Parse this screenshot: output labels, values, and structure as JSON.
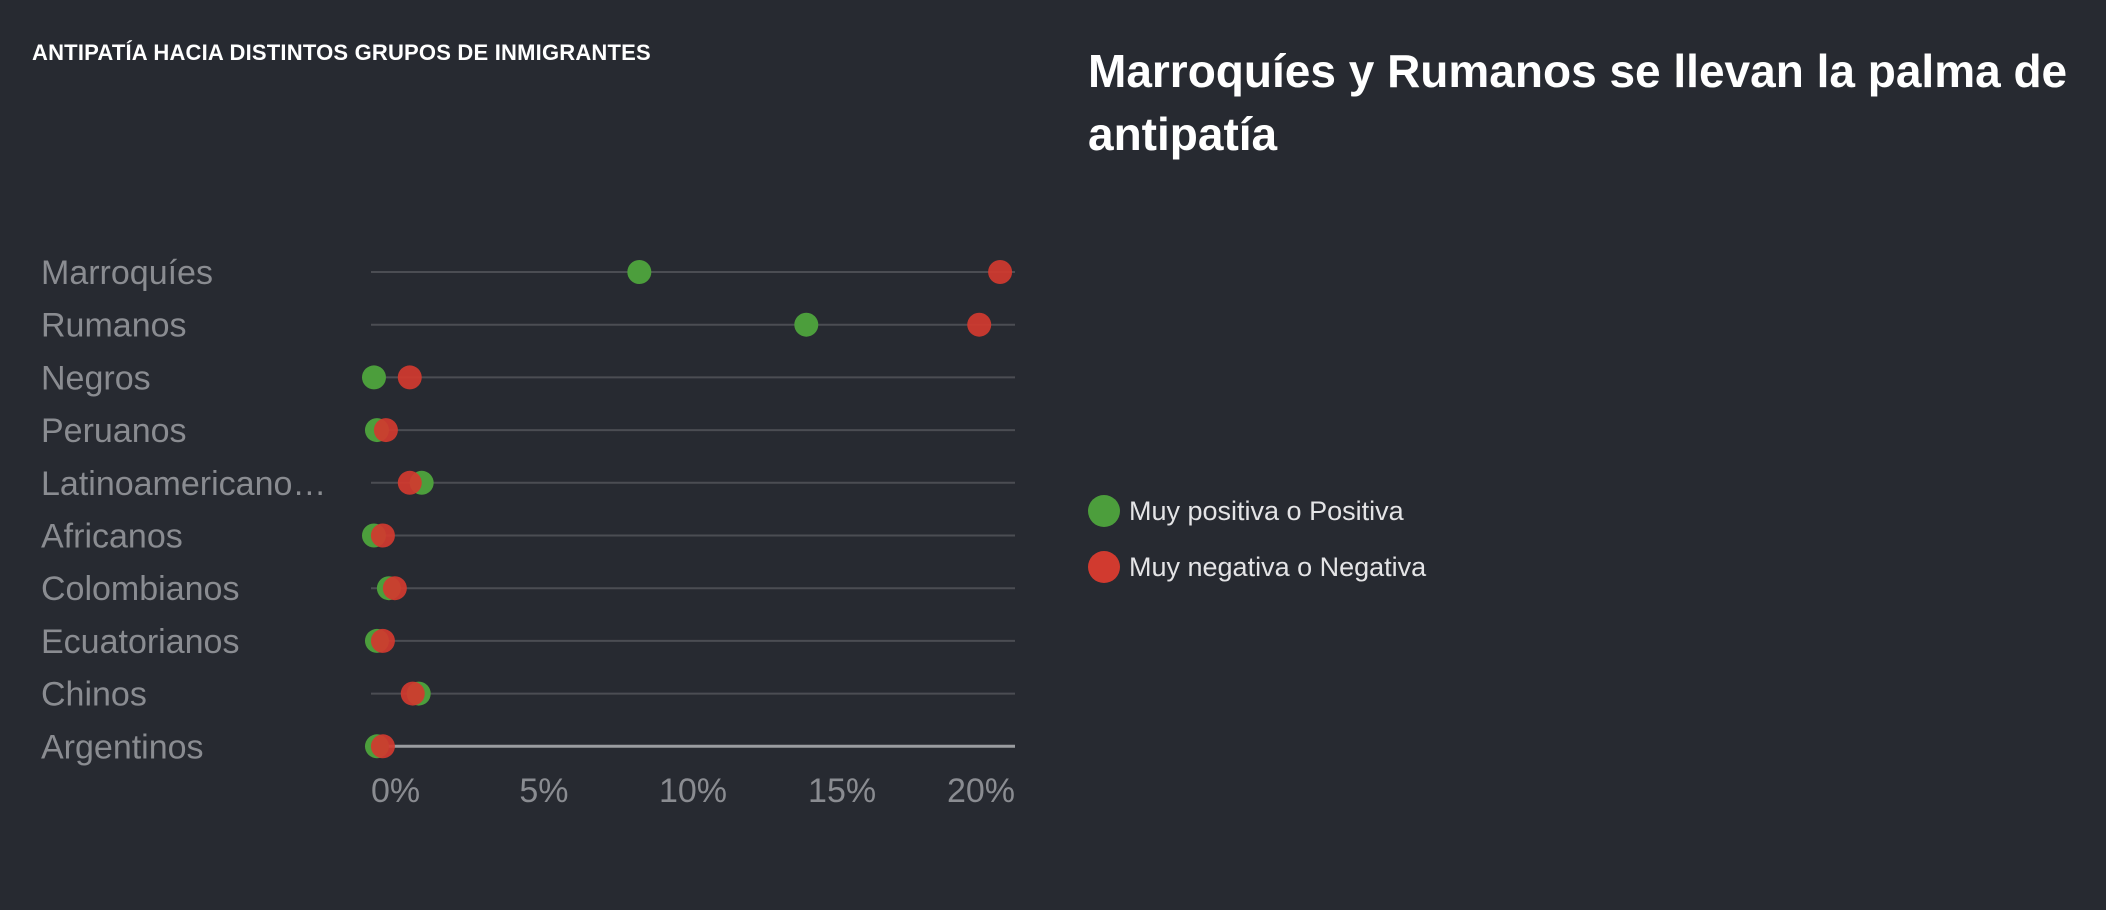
{
  "heading": "ANTIPATÍA HACIA DISTINTOS GRUPOS DE INMIGRANTES",
  "headline": "Marroquíes y Rumanos se llevan la palma de antipatía",
  "colors": {
    "background": "#272a31",
    "positive": "#4c9e3c",
    "negative": "#d13a2f",
    "gridline": "#4b4d53",
    "label": "#8a8c91"
  },
  "legend": [
    {
      "label": "Muy positiva o Positiva",
      "color": "#4c9e3c"
    },
    {
      "label": "Muy negativa o Negativa",
      "color": "#d13a2f"
    }
  ],
  "chart_data": {
    "type": "scatter",
    "subtype": "dot-plot",
    "categories": [
      "Marroquíes",
      "Rumanos",
      "Negros",
      "Peruanos",
      "Latinoamericano…",
      "Africanos",
      "Colombianos",
      "Ecuatorianos",
      "Chinos",
      "Argentinos"
    ],
    "series": [
      {
        "name": "Muy positiva o Positiva",
        "color": "#4c9e3c",
        "values": [
          8.2,
          13.8,
          -0.7,
          -0.6,
          0.9,
          -0.7,
          -0.2,
          -0.6,
          0.8,
          -0.6
        ]
      },
      {
        "name": "Muy negativa o Negativa",
        "color": "#d13a2f",
        "values": [
          20.3,
          19.6,
          0.5,
          -0.3,
          0.5,
          -0.4,
          0.0,
          -0.4,
          0.6,
          -0.4
        ]
      }
    ],
    "xlim": [
      -0.8,
      20.8
    ],
    "xticks": [
      0,
      5,
      10,
      15,
      20
    ],
    "xtick_labels": [
      "0%",
      "5%",
      "10%",
      "15%",
      "20%"
    ],
    "grid": true,
    "legend_position": "right"
  }
}
